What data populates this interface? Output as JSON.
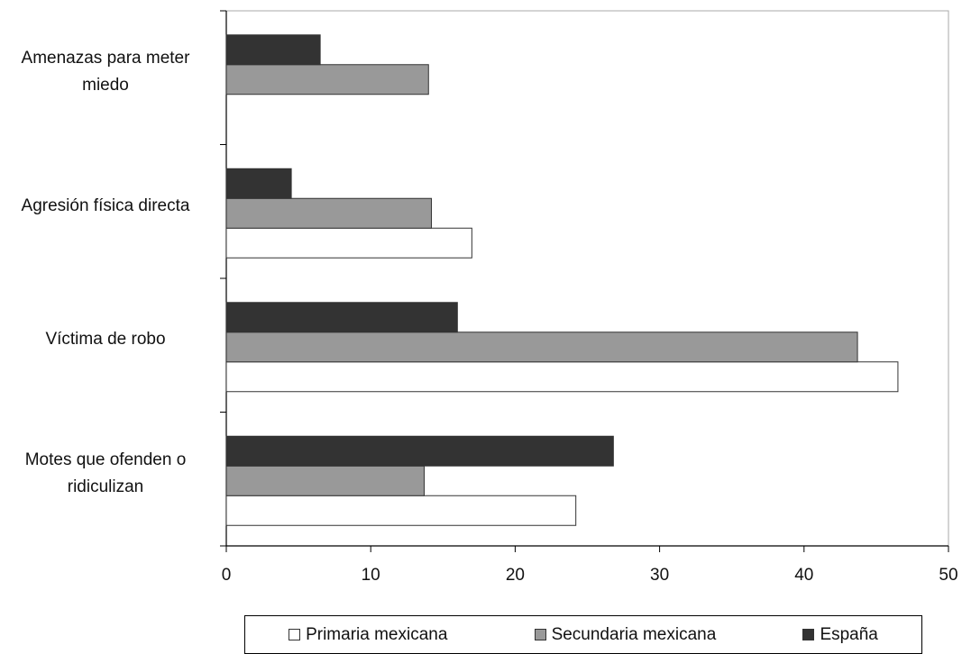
{
  "chart_data": {
    "type": "bar",
    "orientation": "horizontal",
    "categories": [
      "Amenazas para meter miedo",
      "Agresión física directa",
      "Víctima de robo",
      "Motes que ofenden o ridiculizan"
    ],
    "series": [
      {
        "name": "Primaria mexicana",
        "color": "#ffffff",
        "values": [
          null,
          17,
          46.5,
          24.2
        ]
      },
      {
        "name": "Secundaria mexicana",
        "color": "#999999",
        "values": [
          14,
          14.2,
          43.7,
          13.7
        ]
      },
      {
        "name": "España",
        "color": "#333333",
        "values": [
          6.5,
          4.5,
          16,
          26.8
        ]
      }
    ],
    "xlim": [
      0,
      50
    ],
    "xticks": [
      0,
      10,
      20,
      30,
      40,
      50
    ],
    "title": "",
    "xlabel": "",
    "ylabel": "",
    "legend_position": "bottom",
    "grid": false
  }
}
